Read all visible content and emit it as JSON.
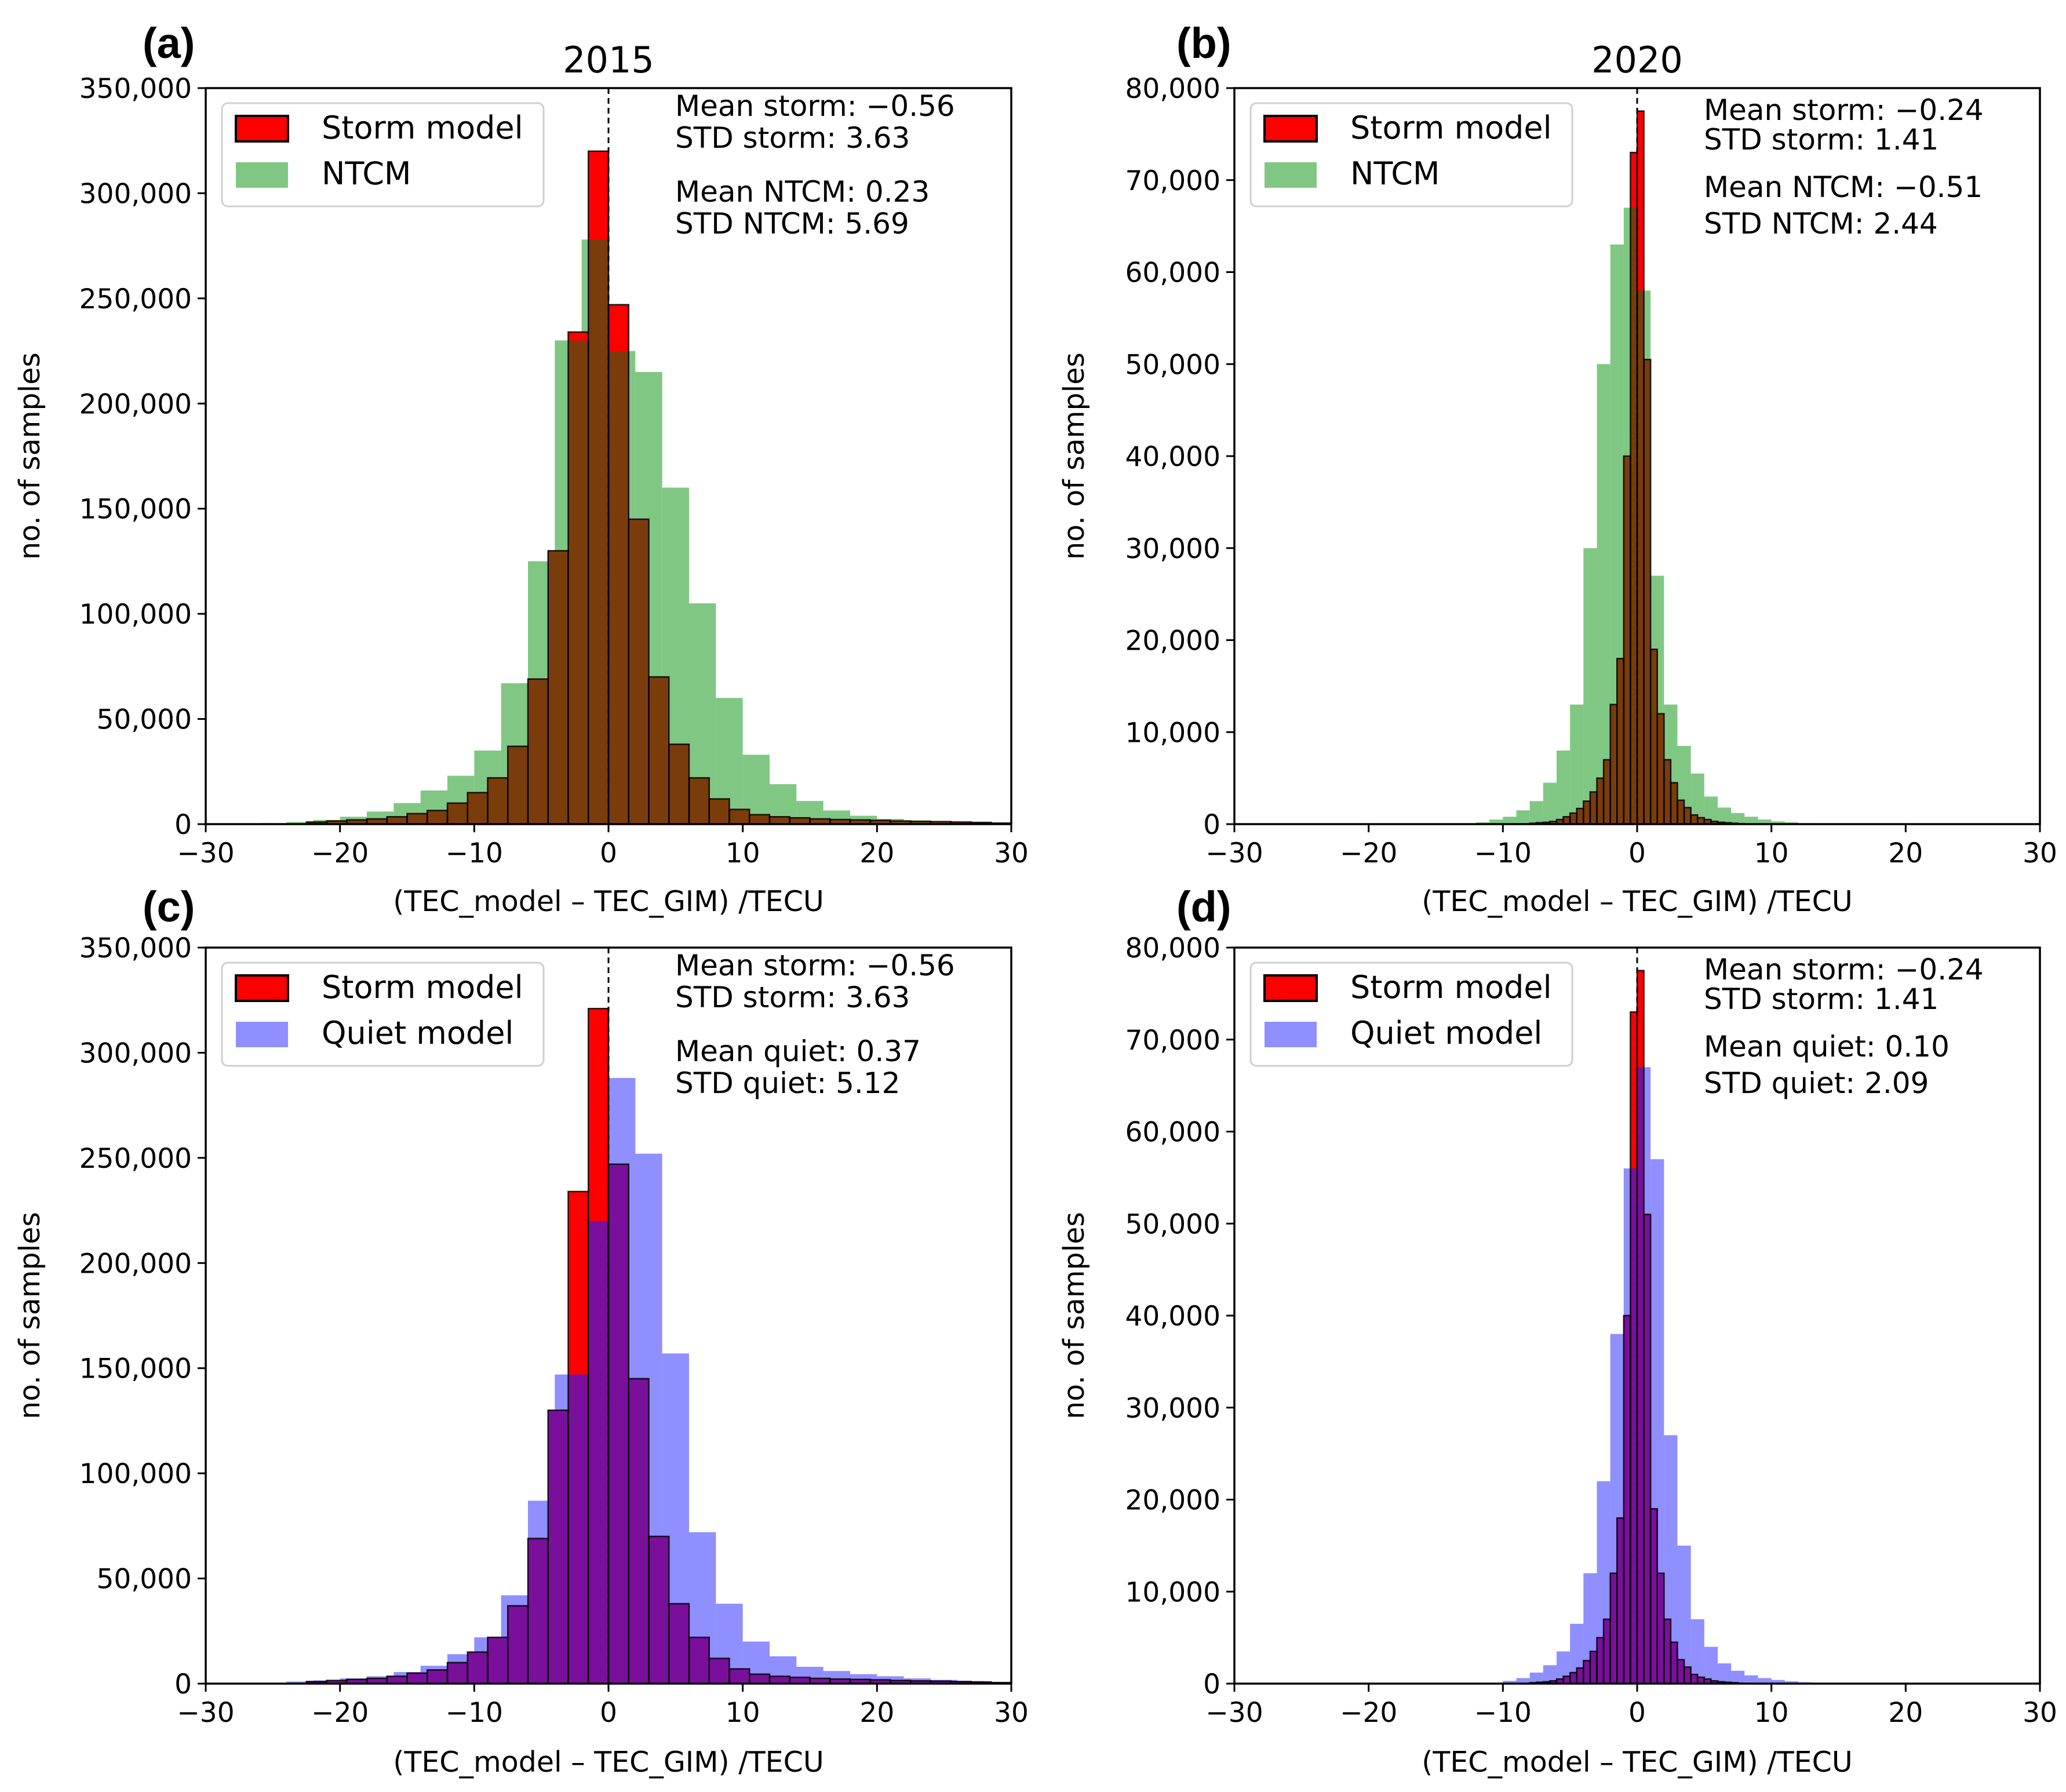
{
  "figure": {
    "axis_label_x": "(TEC_model – TEC_GIM) /TECU",
    "axis_label_y": "no. of samples",
    "colors": {
      "storm": "#ff0000",
      "storm_edge": "#000000",
      "ntcm": "#4caf50",
      "quiet": "#3333ff",
      "overlap_ntcm": "#7a3c0a",
      "overlap_quiet": "#7a0f9c"
    }
  },
  "chart_data": [
    {
      "type": "bar",
      "panel": "(a)",
      "title": "2015",
      "xlabel": "(TEC_model – TEC_GIM) /TECU",
      "ylabel": "no. of samples",
      "xlim": [
        -30,
        30
      ],
      "ylim": [
        0,
        350000
      ],
      "xticks": [
        -30,
        -20,
        -10,
        0,
        10,
        20,
        30
      ],
      "xtick_labels": [
        "−30",
        "−20",
        "−10",
        "0",
        "10",
        "20",
        "30"
      ],
      "yticks": [
        0,
        50000,
        100000,
        150000,
        200000,
        250000,
        300000,
        350000
      ],
      "ytick_labels": [
        "0",
        "50,000",
        "100,000",
        "150,000",
        "200,000",
        "250,000",
        "300,000",
        "350,000"
      ],
      "legend": [
        "Storm model",
        "NTCM"
      ],
      "legend_position": "top-left",
      "stats": [
        "Mean storm: −0.56",
        "STD storm: 3.63",
        "Mean NTCM: 0.23",
        "STD NTCM: 5.69"
      ],
      "series": [
        {
          "name": "Storm model",
          "bin_width": 1.5,
          "bin_starts": [
            -22.5,
            -21,
            -19.5,
            -18,
            -16.5,
            -15,
            -13.5,
            -12,
            -10.5,
            -9,
            -7.5,
            -6,
            -4.5,
            -3,
            -1.5,
            0,
            1.5,
            3,
            4.5,
            6,
            7.5,
            9,
            10.5,
            12,
            13.5,
            15,
            16.5,
            18,
            19.5,
            21,
            22.5,
            24,
            25.5,
            27,
            28.5
          ],
          "values": [
            1000,
            1500,
            2000,
            2500,
            3500,
            5000,
            6500,
            10000,
            15000,
            22000,
            37000,
            69000,
            130000,
            234000,
            320000,
            247000,
            145000,
            70000,
            38000,
            22000,
            12000,
            7000,
            4500,
            3500,
            3000,
            2500,
            2200,
            2000,
            1800,
            1500,
            1300,
            1200,
            1000,
            800,
            500
          ]
        },
        {
          "name": "NTCM",
          "bin_width": 2,
          "bin_starts": [
            -26,
            -24,
            -22,
            -20,
            -18,
            -16,
            -14,
            -12,
            -10,
            -8,
            -6,
            -4,
            -2,
            0,
            2,
            4,
            6,
            8,
            10,
            12,
            14,
            16,
            18,
            20,
            22,
            24,
            26,
            28
          ],
          "values": [
            500,
            1000,
            2000,
            3500,
            6000,
            10000,
            16000,
            23000,
            35000,
            67000,
            125000,
            230000,
            278000,
            225000,
            215000,
            160000,
            105000,
            60000,
            33000,
            19000,
            11000,
            6500,
            4000,
            2500,
            1800,
            1200,
            800,
            500
          ]
        }
      ]
    },
    {
      "type": "bar",
      "panel": "(b)",
      "title": "2020",
      "xlabel": "(TEC_model – TEC_GIM) /TECU",
      "ylabel": "no. of samples",
      "xlim": [
        -30,
        30
      ],
      "ylim": [
        0,
        80000
      ],
      "xticks": [
        -30,
        -20,
        -10,
        0,
        10,
        20,
        30
      ],
      "xtick_labels": [
        "−30",
        "−20",
        "−10",
        "0",
        "10",
        "20",
        "30"
      ],
      "yticks": [
        0,
        10000,
        20000,
        30000,
        40000,
        50000,
        60000,
        70000,
        80000
      ],
      "ytick_labels": [
        "0",
        "10,000",
        "20,000",
        "30,000",
        "40,000",
        "50,000",
        "60,000",
        "70,000",
        "80,000"
      ],
      "legend": [
        "Storm model",
        "NTCM"
      ],
      "legend_position": "top-left",
      "stats": [
        "Mean storm: −0.24",
        "STD storm: 1.41",
        "Mean NTCM: −0.51",
        "STD NTCM: 2.44"
      ],
      "series": [
        {
          "name": "Storm model",
          "bin_width": 0.5,
          "bin_starts": [
            -8,
            -7.5,
            -7,
            -6.5,
            -6,
            -5.5,
            -5,
            -4.5,
            -4,
            -3.5,
            -3,
            -2.5,
            -2,
            -1.5,
            -1,
            -0.5,
            0,
            0.5,
            1,
            1.5,
            2,
            2.5,
            3,
            3.5,
            4,
            4.5,
            5,
            5.5,
            6,
            6.5,
            7,
            7.5
          ],
          "values": [
            100,
            150,
            200,
            300,
            500,
            800,
            1200,
            1700,
            2500,
            3500,
            5000,
            7000,
            13000,
            18000,
            40000,
            73000,
            77500,
            50500,
            19000,
            12000,
            7000,
            4500,
            2600,
            1800,
            1000,
            700,
            500,
            300,
            200,
            150,
            100,
            50
          ]
        },
        {
          "name": "NTCM",
          "bin_width": 1,
          "bin_starts": [
            -12,
            -11,
            -10,
            -9,
            -8,
            -7,
            -6,
            -5,
            -4,
            -3,
            -2,
            -1,
            0,
            1,
            2,
            3,
            4,
            5,
            6,
            7,
            8,
            9,
            10,
            11,
            12,
            13
          ],
          "values": [
            200,
            500,
            800,
            1500,
            2500,
            4500,
            8000,
            13000,
            30000,
            50000,
            63000,
            67000,
            58000,
            27000,
            13000,
            8500,
            5500,
            3000,
            1800,
            1200,
            800,
            500,
            300,
            200,
            100,
            50
          ]
        }
      ]
    },
    {
      "type": "bar",
      "panel": "(c)",
      "title": "",
      "xlabel": "(TEC_model – TEC_GIM) /TECU",
      "ylabel": "no. of samples",
      "xlim": [
        -30,
        30
      ],
      "ylim": [
        0,
        350000
      ],
      "xticks": [
        -30,
        -20,
        -10,
        0,
        10,
        20,
        30
      ],
      "xtick_labels": [
        "−30",
        "−20",
        "−10",
        "0",
        "10",
        "20",
        "30"
      ],
      "yticks": [
        0,
        50000,
        100000,
        150000,
        200000,
        250000,
        300000,
        350000
      ],
      "ytick_labels": [
        "0",
        "50,000",
        "100,000",
        "150,000",
        "200,000",
        "250,000",
        "300,000",
        "350,000"
      ],
      "legend": [
        "Storm model",
        "Quiet model"
      ],
      "legend_position": "top-left",
      "stats": [
        "Mean storm: −0.56",
        "STD storm: 3.63",
        "Mean quiet: 0.37",
        "STD quiet: 5.12"
      ],
      "series": [
        {
          "name": "Storm model",
          "bin_width": 1.5,
          "bin_starts": [
            -22.5,
            -21,
            -19.5,
            -18,
            -16.5,
            -15,
            -13.5,
            -12,
            -10.5,
            -9,
            -7.5,
            -6,
            -4.5,
            -3,
            -1.5,
            0,
            1.5,
            3,
            4.5,
            6,
            7.5,
            9,
            10.5,
            12,
            13.5,
            15,
            16.5,
            18,
            19.5,
            21,
            22.5,
            24,
            25.5,
            27,
            28.5
          ],
          "values": [
            1000,
            1500,
            2000,
            2500,
            3500,
            5000,
            6500,
            10000,
            15000,
            22000,
            37000,
            69000,
            130000,
            234000,
            321000,
            247000,
            145000,
            70000,
            38000,
            22000,
            12000,
            7000,
            4500,
            3500,
            3000,
            2500,
            2200,
            2000,
            1800,
            1500,
            1300,
            1200,
            1000,
            800,
            500
          ]
        },
        {
          "name": "Quiet model",
          "bin_width": 2,
          "bin_starts": [
            -24,
            -22,
            -20,
            -18,
            -16,
            -14,
            -12,
            -10,
            -8,
            -6,
            -4,
            -2,
            0,
            2,
            4,
            6,
            8,
            10,
            12,
            14,
            16,
            18,
            20,
            22,
            24,
            26,
            28
          ],
          "values": [
            1000,
            1500,
            2500,
            3500,
            5500,
            8500,
            14000,
            22000,
            42000,
            87000,
            147000,
            220000,
            288000,
            252000,
            157000,
            72000,
            38000,
            20000,
            13000,
            8000,
            6000,
            4500,
            3500,
            2500,
            1800,
            1200,
            700
          ]
        }
      ]
    },
    {
      "type": "bar",
      "panel": "(d)",
      "title": "",
      "xlabel": "(TEC_model – TEC_GIM) /TECU",
      "ylabel": "no. of samples",
      "xlim": [
        -30,
        30
      ],
      "ylim": [
        0,
        80000
      ],
      "xticks": [
        -30,
        -20,
        -10,
        0,
        10,
        20,
        30
      ],
      "xtick_labels": [
        "−30",
        "−20",
        "−10",
        "0",
        "10",
        "20",
        "30"
      ],
      "yticks": [
        0,
        10000,
        20000,
        30000,
        40000,
        50000,
        60000,
        70000,
        80000
      ],
      "ytick_labels": [
        "0",
        "10,000",
        "20,000",
        "30,000",
        "40,000",
        "50,000",
        "60,000",
        "70,000",
        "80,000"
      ],
      "legend": [
        "Storm model",
        "Quiet model"
      ],
      "legend_position": "top-left",
      "stats": [
        "Mean storm: −0.24",
        "STD storm: 1.41",
        "Mean quiet: 0.10",
        "STD quiet: 2.09"
      ],
      "series": [
        {
          "name": "Storm model",
          "bin_width": 0.5,
          "bin_starts": [
            -8,
            -7.5,
            -7,
            -6.5,
            -6,
            -5.5,
            -5,
            -4.5,
            -4,
            -3.5,
            -3,
            -2.5,
            -2,
            -1.5,
            -1,
            -0.5,
            0,
            0.5,
            1,
            1.5,
            2,
            2.5,
            3,
            3.5,
            4,
            4.5,
            5,
            5.5,
            6,
            6.5,
            7,
            7.5
          ],
          "values": [
            100,
            150,
            200,
            300,
            500,
            800,
            1200,
            1700,
            2500,
            3500,
            5000,
            7000,
            12000,
            18000,
            40000,
            73000,
            77500,
            51000,
            19000,
            12000,
            7000,
            4500,
            2600,
            1800,
            1000,
            700,
            500,
            300,
            200,
            150,
            100,
            50
          ]
        },
        {
          "name": "Quiet model",
          "bin_width": 1,
          "bin_starts": [
            -10,
            -9,
            -8,
            -7,
            -6,
            -5,
            -4,
            -3,
            -2,
            -1,
            0,
            1,
            2,
            3,
            4,
            5,
            6,
            7,
            8,
            9,
            10,
            11,
            12,
            13
          ],
          "values": [
            300,
            600,
            1200,
            2000,
            3500,
            6500,
            12000,
            22000,
            38000,
            56000,
            67000,
            57000,
            27000,
            15000,
            7000,
            4000,
            2200,
            1400,
            900,
            600,
            400,
            250,
            150,
            100
          ]
        }
      ]
    }
  ]
}
